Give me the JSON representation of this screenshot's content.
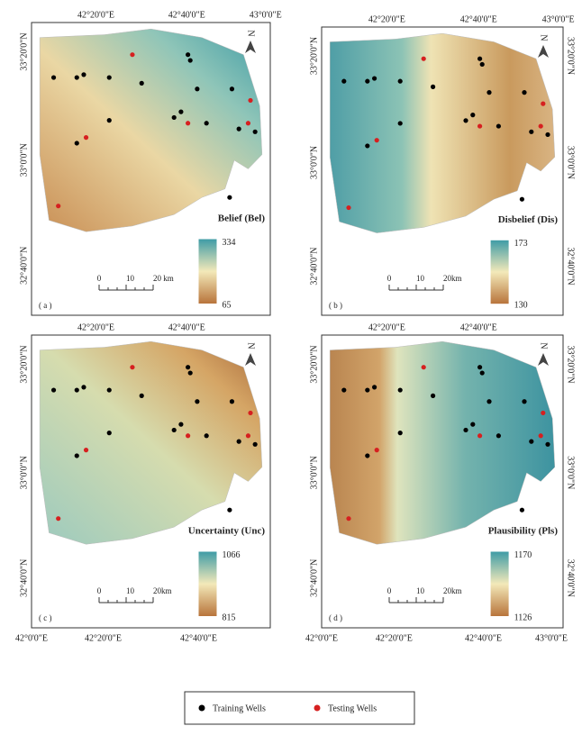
{
  "north_label": "N",
  "panels": [
    {
      "label": "( a )",
      "title": "Belief (Bel)",
      "legend_max": 334,
      "legend_min": 65,
      "scale_labels": [
        "0",
        "10",
        "20 km"
      ],
      "top_labels": [
        "42°20'0\"E",
        "42°40'0\"E",
        "43°0'0\"E"
      ],
      "left_labels": [
        "33°20'0\"N",
        "33°0'0\"N",
        "32°40'0\"N"
      ]
    },
    {
      "label": "( b )",
      "title": "Disbelief (Dis)",
      "legend_max": 173,
      "legend_min": 130,
      "scale_labels": [
        "0",
        "10",
        "20km"
      ],
      "top_labels": [
        "42°20'0\"E",
        "42°40'0\"E",
        "43°0'0\"E"
      ],
      "left_labels": [
        "33°20'0\"N",
        "33°0'0\"N",
        "32°40'0\"N"
      ],
      "right_labels": [
        "33°20'0\"N",
        "33°0'0\"N",
        "32°40'0\"N"
      ]
    },
    {
      "label": "( c )",
      "title": "Uncertainty (Unc)",
      "legend_max": 1066,
      "legend_min": 815,
      "scale_labels": [
        "0",
        "10",
        "20km"
      ],
      "top_labels": [
        "42°20'0\"E",
        "42°40'0\"E"
      ],
      "left_labels": [
        "33°20'0\"N",
        "33°0'0\"N",
        "32°40'0\"N"
      ],
      "bottom_labels": [
        "42°0'0\"E",
        "42°20'0\"E",
        "42°40'0\"E"
      ]
    },
    {
      "label": "( d )",
      "title": "Plausibility (Pls)",
      "legend_max": 1170,
      "legend_min": 1126,
      "scale_labels": [
        "0",
        "10",
        "20km"
      ],
      "top_labels": [
        "42°20'0\"E",
        "42°40'0\"E"
      ],
      "left_labels": [
        "33°20'0\"N",
        "33°0'0\"N",
        "32°40'0\"N"
      ],
      "right_labels": [
        "33°20'0\"N",
        "33°0'0\"N",
        "32°40'0\"N"
      ],
      "bottom_labels": [
        "42°0'0\"E",
        "42°20'0\"E",
        "42°40'0\"E",
        "43°0'0\"E"
      ]
    }
  ],
  "legend": {
    "items": [
      "Training Wells",
      "Testing Wells"
    ]
  }
}
